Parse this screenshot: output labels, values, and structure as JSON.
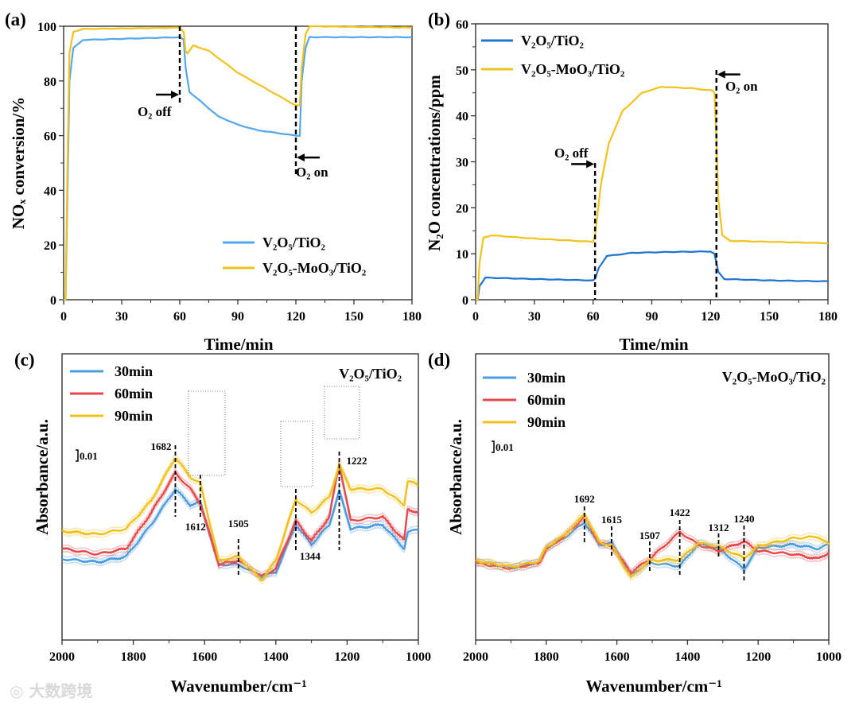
{
  "watermark": "大数跨境",
  "chart_data": [
    {
      "panel": "(a)",
      "type": "line",
      "xlabel": "Time/min",
      "ylabel": "NOₓ conversion/%",
      "xlim": [
        0,
        180
      ],
      "ylim": [
        0,
        100
      ],
      "xticks": [
        0,
        30,
        60,
        90,
        120,
        150,
        180
      ],
      "yticks": [
        0,
        20,
        40,
        60,
        80,
        100
      ],
      "legend_position": "lower-right",
      "series": [
        {
          "name": "V₂O₅/TiO₂",
          "color": "#55a6ec",
          "x": [
            0,
            1,
            2,
            3,
            5,
            10,
            60,
            62,
            63,
            65,
            70,
            80,
            90,
            100,
            120,
            122,
            123,
            125,
            127,
            180
          ],
          "y": [
            0,
            0,
            40,
            80,
            92,
            95,
            96,
            95,
            85,
            76,
            73,
            67,
            64,
            62,
            60,
            60,
            80,
            92,
            96,
            96
          ]
        },
        {
          "name": "V₂O₅-MoO₃/TiO₂",
          "color": "#f1c21b",
          "x": [
            0,
            1,
            2,
            3,
            5,
            10,
            60,
            62,
            63,
            64,
            67,
            75,
            90,
            105,
            120,
            122,
            123,
            125,
            127,
            180
          ],
          "y": [
            0,
            0,
            50,
            90,
            98,
            99,
            99.5,
            98,
            91,
            90,
            93,
            91,
            83,
            77,
            71,
            71,
            85,
            97,
            100,
            99.5
          ]
        }
      ],
      "annotations": [
        {
          "text": "O₂ off",
          "x": 60,
          "arrow_y": 75,
          "direction": "right"
        },
        {
          "text": "O₂ on",
          "x": 120,
          "arrow_y": 52,
          "direction": "left"
        }
      ]
    },
    {
      "panel": "(b)",
      "type": "line",
      "xlabel": "Time/min",
      "ylabel": "N₂O concentrations/ppm",
      "xlim": [
        0,
        180
      ],
      "ylim": [
        0,
        60
      ],
      "xticks": [
        0,
        30,
        60,
        90,
        120,
        150,
        180
      ],
      "yticks": [
        0,
        10,
        20,
        30,
        40,
        50,
        60
      ],
      "legend_position": "top-left",
      "series": [
        {
          "name": "V₂O₅/TiO₂",
          "color": "#1f74d3",
          "x": [
            0,
            1,
            2,
            5,
            30,
            60,
            61,
            63,
            67,
            80,
            100,
            120,
            122,
            124,
            127,
            150,
            180
          ],
          "y": [
            0,
            0,
            3,
            4.8,
            4.5,
            4.2,
            4.5,
            7,
            9.5,
            10.2,
            10.4,
            10.5,
            10,
            6,
            4.5,
            4.2,
            4
          ]
        },
        {
          "name": "V₂O₅-MoO₃/TiO₂",
          "color": "#f1c21b",
          "x": [
            0,
            1,
            2,
            4,
            8,
            30,
            60,
            61,
            64,
            68,
            75,
            85,
            95,
            110,
            121,
            122,
            123,
            124,
            126,
            130,
            180
          ],
          "y": [
            0,
            0,
            8,
            13.5,
            14,
            13.3,
            12.6,
            14,
            25,
            34,
            41,
            45,
            46.3,
            46,
            45.5,
            45,
            35,
            22,
            14,
            12.8,
            12.3
          ]
        }
      ],
      "annotations": [
        {
          "text": "O₂ off",
          "x": 61,
          "arrow_y": 29.5,
          "direction": "right"
        },
        {
          "text": "O₂ on",
          "x": 123,
          "arrow_y": 49,
          "direction": "left"
        }
      ]
    },
    {
      "panel": "(c)",
      "type": "line",
      "sample": "V₂O₅/TiO₂",
      "xlabel": "Wavenumber/cm⁻¹",
      "ylabel": "Absorbance/a.u.",
      "xlim": [
        2000,
        1000
      ],
      "ylim": [
        0,
        3.6
      ],
      "xticks": [
        2000,
        1800,
        1600,
        1400,
        1200,
        1000
      ],
      "scale_bar": "0.01",
      "legend_position": "top-left",
      "x": [
        2000,
        1900,
        1820,
        1750,
        1682,
        1640,
        1612,
        1560,
        1505,
        1440,
        1400,
        1344,
        1300,
        1250,
        1222,
        1190,
        1100,
        1040,
        1030,
        1000
      ],
      "series": [
        {
          "name": "30min",
          "color": "#4b9be3",
          "y": [
            1.02,
            0.98,
            1.05,
            1.45,
            1.9,
            1.7,
            1.73,
            0.95,
            0.95,
            0.8,
            0.85,
            1.45,
            1.2,
            1.45,
            1.87,
            1.4,
            1.45,
            1.15,
            1.35,
            1.4
          ]
        },
        {
          "name": "60min",
          "color": "#e6474a",
          "y": [
            1.15,
            1.08,
            1.15,
            1.6,
            2.1,
            1.9,
            1.72,
            0.95,
            1.0,
            0.8,
            0.9,
            1.5,
            1.25,
            1.55,
            2.22,
            1.5,
            1.55,
            1.25,
            1.65,
            1.6
          ]
        },
        {
          "name": "90min",
          "color": "#f2c01a",
          "y": [
            1.37,
            1.33,
            1.4,
            1.75,
            2.3,
            2.05,
            1.97,
            1.0,
            1.05,
            0.75,
            1.0,
            1.77,
            1.6,
            1.8,
            2.2,
            1.9,
            1.9,
            1.7,
            2.0,
            1.95
          ]
        }
      ],
      "peaks": [
        {
          "label": "1682",
          "x": 1682
        },
        {
          "label": "1612",
          "x": 1612
        },
        {
          "label": "1505",
          "x": 1505
        },
        {
          "label": "1344",
          "x": 1344
        },
        {
          "label": "1222",
          "x": 1222
        }
      ]
    },
    {
      "panel": "(d)",
      "type": "line",
      "sample": "V₂O₅-MoO₃/TiO₂",
      "xlabel": "Wavenumber/cm⁻¹",
      "ylabel": "Absorbance/a.u.",
      "xlim": [
        2000,
        1000
      ],
      "ylim": [
        0,
        3.6
      ],
      "xticks": [
        2000,
        1800,
        1600,
        1400,
        1200,
        1000
      ],
      "scale_bar": "0.01",
      "legend_position": "top-left",
      "x": [
        2000,
        1900,
        1820,
        1800,
        1750,
        1692,
        1650,
        1615,
        1560,
        1507,
        1422,
        1370,
        1312,
        1240,
        1200,
        1100,
        1030,
        1000
      ],
      "series": [
        {
          "name": "30min",
          "color": "#4b9be3",
          "y": [
            0.99,
            0.91,
            0.98,
            1.16,
            1.28,
            1.48,
            1.2,
            1.22,
            0.82,
            0.97,
            0.93,
            1.21,
            1.16,
            0.89,
            1.16,
            1.2,
            1.15,
            1.2
          ]
        },
        {
          "name": "60min",
          "color": "#e6474a",
          "y": [
            0.97,
            0.9,
            0.97,
            1.14,
            1.3,
            1.55,
            1.22,
            1.18,
            0.85,
            1.02,
            1.36,
            1.2,
            1.12,
            1.24,
            1.12,
            1.08,
            1.02,
            1.1
          ]
        },
        {
          "name": "90min",
          "color": "#f2c01a",
          "y": [
            1.0,
            0.92,
            0.99,
            1.17,
            1.31,
            1.58,
            1.23,
            1.19,
            0.78,
            1.0,
            1.01,
            1.22,
            1.18,
            1.03,
            1.18,
            1.28,
            1.3,
            1.2
          ]
        }
      ],
      "peaks": [
        {
          "label": "1692",
          "x": 1692
        },
        {
          "label": "1615",
          "x": 1615
        },
        {
          "label": "1507",
          "x": 1507
        },
        {
          "label": "1422",
          "x": 1422
        },
        {
          "label": "1312",
          "x": 1312
        },
        {
          "label": "1240",
          "x": 1240
        }
      ]
    }
  ]
}
